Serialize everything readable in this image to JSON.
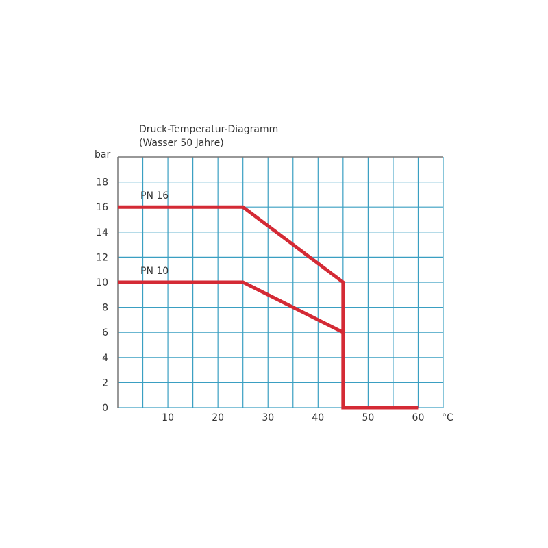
{
  "chart_data": {
    "type": "line",
    "title": "Druck-Temperatur-Diagramm",
    "subtitle": "(Wasser 50 Jahre)",
    "ylabel": "bar",
    "xlabel": "°C",
    "xlim": [
      0,
      65
    ],
    "ylim": [
      0,
      20
    ],
    "x_ticks": [
      10,
      20,
      30,
      40,
      50,
      60
    ],
    "y_ticks": [
      0,
      2,
      4,
      6,
      8,
      10,
      12,
      14,
      16,
      18
    ],
    "grid": true,
    "grid_x_step": 5,
    "grid_y_step": 2,
    "series": [
      {
        "name": "PN 16",
        "points": [
          [
            0,
            16
          ],
          [
            25,
            16
          ],
          [
            45,
            10
          ],
          [
            45,
            0
          ],
          [
            60,
            0
          ]
        ]
      },
      {
        "name": "PN 10",
        "points": [
          [
            0,
            10
          ],
          [
            25,
            10
          ],
          [
            45,
            6
          ]
        ]
      }
    ],
    "colors": {
      "line": "#d42a35",
      "grid": "#3a9fc2",
      "frame": "#777777"
    }
  }
}
